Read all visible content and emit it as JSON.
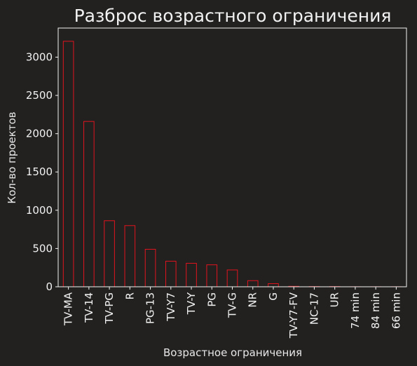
{
  "chart_data": {
    "type": "bar",
    "title": "Разброс возрастного ограничения",
    "xlabel": "Возрастное ограничения",
    "ylabel": "Кол-во проектов",
    "categories": [
      "TV-MA",
      "TV-14",
      "TV-PG",
      "R",
      "PG-13",
      "TV-Y7",
      "TV-Y",
      "PG",
      "TV-G",
      "NR",
      "G",
      "TV-Y7-FV",
      "NC-17",
      "UR",
      "74 min",
      "84 min",
      "66 min"
    ],
    "values": [
      3207,
      2160,
      863,
      799,
      490,
      334,
      307,
      287,
      220,
      80,
      41,
      6,
      3,
      3,
      1,
      1,
      1
    ],
    "ylim": [
      0,
      3380
    ],
    "yticks": [
      0,
      500,
      1000,
      1500,
      2000,
      2500,
      3000
    ],
    "grid": false,
    "legend": "none",
    "colors": {
      "background": "#222120",
      "bar_edge": "#e0141e",
      "bar_fill": "#222120",
      "text": "#f2f2f2",
      "axis": "#f2f2f2"
    }
  }
}
